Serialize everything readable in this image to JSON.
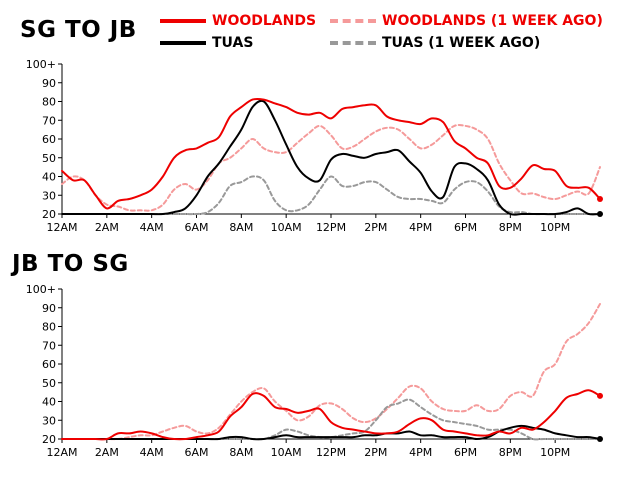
{
  "colors": {
    "woodlands": "#ee0000",
    "woodlands_week_ago": "#f59a9a",
    "tuas": "#000000",
    "tuas_week_ago": "#999999"
  },
  "legend": {
    "woodlands": "WOODLANDS",
    "woodlands_week_ago": "WOODLANDS (1 WEEK AGO)",
    "tuas": "TUAS",
    "tuas_week_ago": "TUAS (1 WEEK AGO)"
  },
  "chart_data": [
    {
      "type": "line",
      "title": "SG TO JB",
      "xlabel": "",
      "ylabel": "",
      "x_ticks": [
        "12AM",
        "2AM",
        "4AM",
        "6AM",
        "8AM",
        "10AM",
        "12PM",
        "2PM",
        "4PM",
        "6PM",
        "8PM",
        "10PM"
      ],
      "y_ticks": [
        "20",
        "30",
        "40",
        "50",
        "60",
        "70",
        "80",
        "90",
        "100+"
      ],
      "xlim": [
        0,
        24
      ],
      "ylim": [
        20,
        100
      ],
      "grid": false,
      "legend_position": "top-right",
      "series": [
        {
          "name": "WOODLANDS (1 WEEK AGO)",
          "color_key": "woodlands_week_ago",
          "dashed": true,
          "x": [
            0,
            0.5,
            1,
            1.5,
            2,
            2.5,
            3,
            3.5,
            4,
            4.5,
            5,
            5.5,
            6,
            6.5,
            7,
            7.5,
            8,
            8.5,
            9,
            9.5,
            10,
            10.5,
            11,
            11.5,
            12,
            12.5,
            13,
            13.5,
            14,
            14.5,
            15,
            15.5,
            16,
            16.5,
            17,
            17.5,
            18,
            18.5,
            19,
            19.5,
            20,
            20.5,
            21,
            21.5,
            22,
            22.5,
            23,
            23.5,
            24
          ],
          "y": [
            36,
            40,
            38,
            30,
            25,
            24,
            22,
            22,
            22,
            25,
            33,
            36,
            33,
            38,
            47,
            50,
            55,
            60,
            55,
            53,
            53,
            58,
            63,
            67,
            62,
            55,
            56,
            60,
            64,
            66,
            65,
            60,
            55,
            57,
            62,
            67,
            67,
            65,
            60,
            47,
            38,
            31,
            31,
            29,
            28,
            30,
            32,
            31,
            45
          ]
        },
        {
          "name": "TUAS (1 WEEK AGO)",
          "color_key": "tuas_week_ago",
          "dashed": true,
          "x": [
            0,
            0.5,
            1,
            1.5,
            2,
            2.5,
            3,
            3.5,
            4,
            4.5,
            5,
            5.5,
            6,
            6.5,
            7,
            7.5,
            8,
            8.5,
            9,
            9.5,
            10,
            10.5,
            11,
            11.5,
            12,
            12.5,
            13,
            13.5,
            14,
            14.5,
            15,
            15.5,
            16,
            16.5,
            17,
            17.5,
            18,
            18.5,
            19,
            19.5,
            20,
            20.5,
            21,
            21.5,
            22,
            22.5,
            23,
            23.5,
            24
          ],
          "y": [
            20,
            20,
            20,
            20,
            20,
            20,
            20,
            20,
            20,
            20,
            20,
            20,
            20,
            21,
            26,
            35,
            37,
            40,
            38,
            27,
            22,
            22,
            25,
            33,
            40,
            35,
            35,
            37,
            37,
            33,
            29,
            28,
            28,
            27,
            26,
            33,
            37,
            37,
            32,
            24,
            21,
            21,
            20,
            20,
            20,
            20,
            20,
            20,
            20
          ]
        },
        {
          "name": "TUAS",
          "color_key": "tuas",
          "dashed": false,
          "x": [
            0,
            0.5,
            1,
            1.5,
            2,
            2.5,
            3,
            3.5,
            4,
            4.5,
            5,
            5.5,
            6,
            6.5,
            7,
            7.5,
            8,
            8.5,
            9,
            9.5,
            10,
            10.5,
            11,
            11.5,
            12,
            12.5,
            13,
            13.5,
            14,
            14.5,
            15,
            15.5,
            16,
            16.5,
            17,
            17.5,
            18,
            18.5,
            19,
            19.5,
            20,
            20.5,
            21,
            21.5,
            22,
            22.5,
            23,
            23.5,
            24
          ],
          "y": [
            20,
            20,
            20,
            20,
            20,
            20,
            20,
            20,
            20,
            20,
            21,
            23,
            30,
            40,
            47,
            56,
            65,
            77,
            80,
            70,
            57,
            45,
            39,
            38,
            49,
            52,
            51,
            50,
            52,
            53,
            54,
            48,
            42,
            32,
            29,
            45,
            47,
            44,
            38,
            25,
            20,
            20,
            20,
            20,
            20,
            21,
            23,
            20,
            20
          ]
        },
        {
          "name": "WOODLANDS",
          "color_key": "woodlands",
          "dashed": false,
          "x": [
            0,
            0.5,
            1,
            1.5,
            2,
            2.5,
            3,
            3.5,
            4,
            4.5,
            5,
            5.5,
            6,
            6.5,
            7,
            7.5,
            8,
            8.5,
            9,
            9.5,
            10,
            10.5,
            11,
            11.5,
            12,
            12.5,
            13,
            13.5,
            14,
            14.5,
            15,
            15.5,
            16,
            16.5,
            17,
            17.5,
            18,
            18.5,
            19,
            19.5,
            20,
            20.5,
            21,
            21.5,
            22,
            22.5,
            23,
            23.5,
            24
          ],
          "y": [
            43,
            38,
            38,
            30,
            23,
            27,
            28,
            30,
            33,
            40,
            50,
            54,
            55,
            58,
            61,
            72,
            77,
            81,
            81,
            79,
            77,
            74,
            73,
            74,
            71,
            76,
            77,
            78,
            78,
            72,
            70,
            69,
            68,
            71,
            69,
            59,
            55,
            50,
            47,
            35,
            34,
            39,
            46,
            44,
            43,
            35,
            34,
            34,
            28
          ]
        }
      ]
    },
    {
      "type": "line",
      "title": "JB TO SG",
      "xlabel": "",
      "ylabel": "",
      "x_ticks": [
        "12AM",
        "2AM",
        "4AM",
        "6AM",
        "8AM",
        "10AM",
        "12PM",
        "2PM",
        "4PM",
        "6PM",
        "8PM",
        "10PM"
      ],
      "y_ticks": [
        "20",
        "30",
        "40",
        "50",
        "60",
        "70",
        "80",
        "90",
        "100+"
      ],
      "xlim": [
        0,
        24
      ],
      "ylim": [
        20,
        100
      ],
      "grid": false,
      "legend_position": "none",
      "series": [
        {
          "name": "WOODLANDS (1 WEEK AGO)",
          "color_key": "woodlands_week_ago",
          "dashed": true,
          "x": [
            0,
            0.5,
            1,
            1.5,
            2,
            2.5,
            3,
            3.5,
            4,
            4.5,
            5,
            5.5,
            6,
            6.5,
            7,
            7.5,
            8,
            8.5,
            9,
            9.5,
            10,
            10.5,
            11,
            11.5,
            12,
            12.5,
            13,
            13.5,
            14,
            14.5,
            15,
            15.5,
            16,
            16.5,
            17,
            17.5,
            18,
            18.5,
            19,
            19.5,
            20,
            20.5,
            21,
            21.5,
            22,
            22.5,
            23,
            23.5,
            24
          ],
          "y": [
            20,
            20,
            20,
            20,
            20,
            20,
            21,
            22,
            22,
            24,
            26,
            27,
            24,
            23,
            26,
            33,
            40,
            45,
            47,
            40,
            35,
            30,
            32,
            38,
            39,
            36,
            31,
            29,
            31,
            36,
            42,
            48,
            47,
            40,
            36,
            35,
            35,
            38,
            35,
            36,
            43,
            45,
            43,
            56,
            60,
            72,
            76,
            82,
            92
          ]
        },
        {
          "name": "TUAS (1 WEEK AGO)",
          "color_key": "tuas_week_ago",
          "dashed": true,
          "x": [
            0,
            0.5,
            1,
            1.5,
            2,
            2.5,
            3,
            3.5,
            4,
            4.5,
            5,
            5.5,
            6,
            6.5,
            7,
            7.5,
            8,
            8.5,
            9,
            9.5,
            10,
            10.5,
            11,
            11.5,
            12,
            12.5,
            13,
            13.5,
            14,
            14.5,
            15,
            15.5,
            16,
            16.5,
            17,
            17.5,
            18,
            18.5,
            19,
            19.5,
            20,
            20.5,
            21,
            21.5,
            22,
            22.5,
            23,
            23.5,
            24
          ],
          "y": [
            20,
            20,
            20,
            20,
            20,
            20,
            20,
            20,
            20,
            20,
            20,
            20,
            20,
            20,
            20,
            20,
            20,
            20,
            20,
            22,
            25,
            24,
            22,
            21,
            21,
            22,
            23,
            24,
            30,
            37,
            39,
            41,
            37,
            33,
            30,
            29,
            28,
            27,
            25,
            25,
            25,
            23,
            20,
            20,
            20,
            20,
            20,
            20,
            20
          ]
        },
        {
          "name": "TUAS",
          "color_key": "tuas",
          "dashed": false,
          "x": [
            0,
            0.5,
            1,
            1.5,
            2,
            2.5,
            3,
            3.5,
            4,
            4.5,
            5,
            5.5,
            6,
            6.5,
            7,
            7.5,
            8,
            8.5,
            9,
            9.5,
            10,
            10.5,
            11,
            11.5,
            12,
            12.5,
            13,
            13.5,
            14,
            14.5,
            15,
            15.5,
            16,
            16.5,
            17,
            17.5,
            18,
            18.5,
            19,
            19.5,
            20,
            20.5,
            21,
            21.5,
            22,
            22.5,
            23,
            23.5,
            24
          ],
          "y": [
            20,
            20,
            20,
            20,
            20,
            20,
            20,
            20,
            20,
            20,
            20,
            20,
            20,
            20,
            20,
            21,
            21,
            20,
            20,
            21,
            22,
            21,
            21,
            21,
            21,
            21,
            21,
            22,
            22,
            23,
            23,
            24,
            22,
            22,
            21,
            21,
            21,
            20,
            21,
            24,
            26,
            27,
            26,
            25,
            23,
            22,
            21,
            21,
            20
          ]
        },
        {
          "name": "WOODLANDS",
          "color_key": "woodlands",
          "dashed": false,
          "x": [
            0,
            0.5,
            1,
            1.5,
            2,
            2.5,
            3,
            3.5,
            4,
            4.5,
            5,
            5.5,
            6,
            6.5,
            7,
            7.5,
            8,
            8.5,
            9,
            9.5,
            10,
            10.5,
            11,
            11.5,
            12,
            12.5,
            13,
            13.5,
            14,
            14.5,
            15,
            15.5,
            16,
            16.5,
            17,
            17.5,
            18,
            18.5,
            19,
            19.5,
            20,
            20.5,
            21,
            21.5,
            22,
            22.5,
            23,
            23.5,
            24
          ],
          "y": [
            20,
            20,
            20,
            20,
            20,
            23,
            23,
            24,
            23,
            21,
            20,
            20,
            21,
            22,
            24,
            32,
            37,
            44,
            43,
            37,
            36,
            34,
            35,
            36,
            29,
            26,
            25,
            24,
            23,
            23,
            24,
            28,
            31,
            30,
            25,
            24,
            23,
            22,
            22,
            24,
            23,
            26,
            25,
            29,
            35,
            42,
            44,
            46,
            43
          ]
        }
      ]
    }
  ]
}
